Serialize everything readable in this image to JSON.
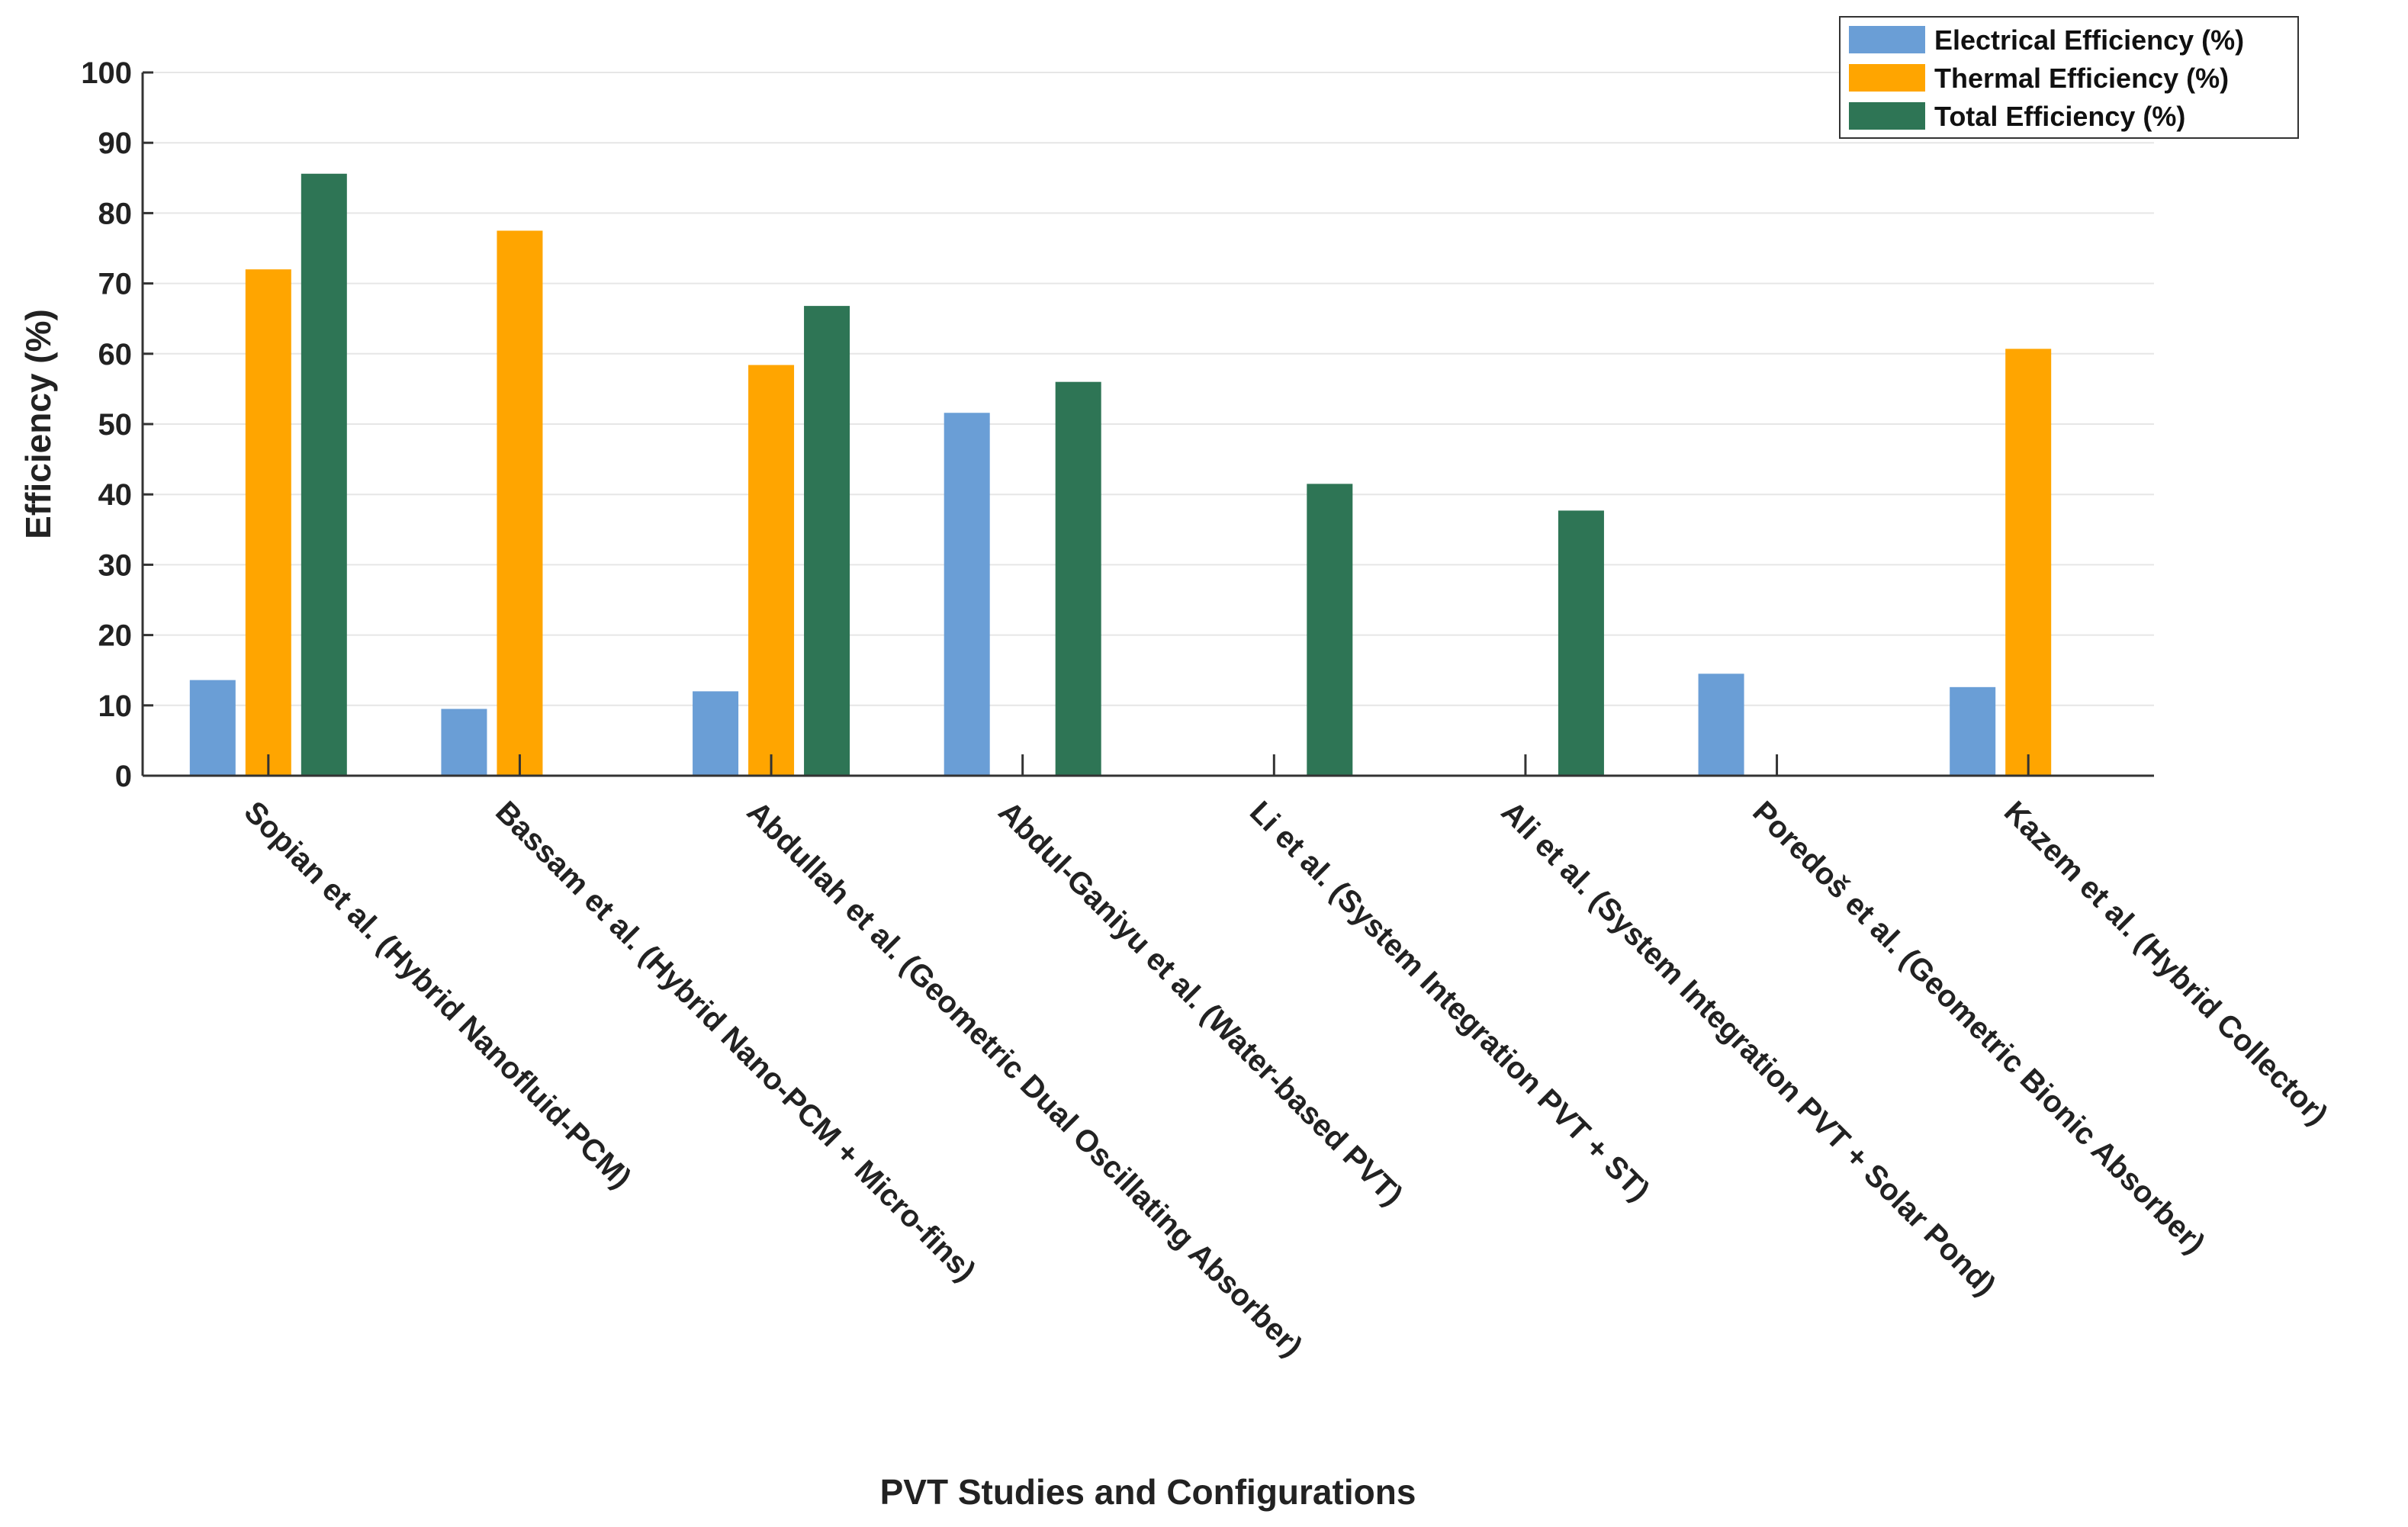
{
  "chart_data": {
    "type": "bar",
    "title": "",
    "xlabel": "PVT Studies and Configurations",
    "ylabel": "Efficiency (%)",
    "ylim": [
      0,
      100
    ],
    "yticks": [
      0,
      10,
      20,
      30,
      40,
      50,
      60,
      70,
      80,
      90,
      100
    ],
    "grid": true,
    "legend_position": "top-right",
    "categories": [
      "Sopian et al. (Hybrid Nanofluid-PCM)",
      "Bassam et al. (Hybrid Nano-PCM + Micro-fins)",
      "Abdullah et al. (Geometric Dual Oscillating Absorber)",
      "Abdul-Ganiyu et al. (Water-based PVT)",
      "Li et al. (System Integration PVT + ST)",
      "Ali et al. (System Integration PVT + Solar Pond)",
      "Poredoš et al. (Geometric Bionic Absorber)",
      "Kazem et al. (Hybrid Collector)"
    ],
    "series": [
      {
        "name": "Electrical Efficiency (%)",
        "color": "#6a9ed6",
        "values": [
          13.6,
          9.5,
          12.0,
          51.6,
          null,
          null,
          14.5,
          12.6
        ]
      },
      {
        "name": "Thermal Efficiency (%)",
        "color": "#ffa500",
        "values": [
          72.0,
          77.5,
          58.4,
          null,
          null,
          null,
          null,
          60.7
        ]
      },
      {
        "name": "Total Efficiency (%)",
        "color": "#2e7555",
        "values": [
          85.6,
          null,
          66.8,
          56.0,
          41.5,
          37.7,
          null,
          null
        ]
      }
    ]
  }
}
